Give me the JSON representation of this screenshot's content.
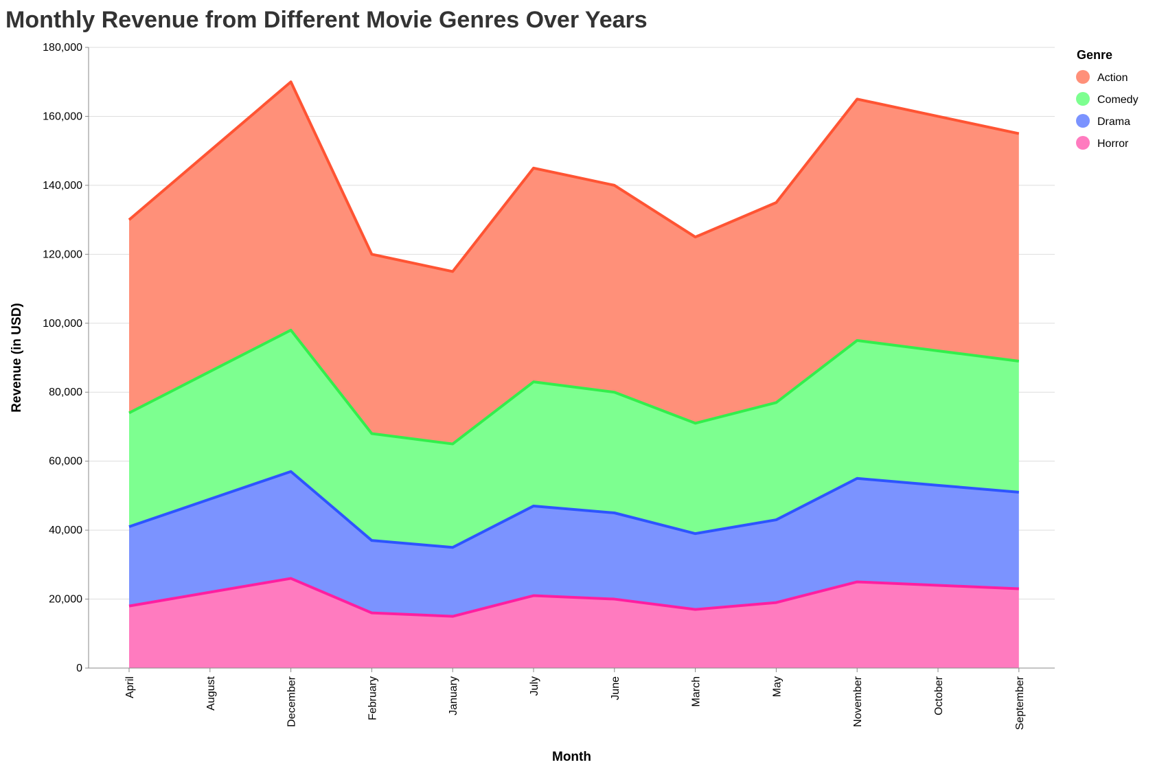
{
  "chart_data": {
    "type": "area",
    "title": "Monthly Revenue from Different Movie Genres Over Years",
    "xlabel": "Month",
    "ylabel": "Revenue (in USD)",
    "ylim": [
      0,
      180000
    ],
    "y_ticks": [
      0,
      20000,
      40000,
      60000,
      80000,
      100000,
      120000,
      140000,
      160000,
      180000
    ],
    "y_tick_labels": [
      "0",
      "20,000",
      "40,000",
      "60,000",
      "80,000",
      "100,000",
      "120,000",
      "140,000",
      "160,000",
      "180,000"
    ],
    "stacked": true,
    "grid": true,
    "legend_title": "Genre",
    "legend_position": "top-right",
    "categories": [
      "April",
      "August",
      "December",
      "February",
      "January",
      "July",
      "June",
      "March",
      "May",
      "November",
      "October",
      "September"
    ],
    "series": [
      {
        "name": "Horror",
        "fill": "#ff7bbf",
        "stroke": "#ff1fa0",
        "legend_color": "#ff7bbf",
        "values": [
          18000,
          22000,
          26000,
          16000,
          15000,
          21000,
          20000,
          17000,
          19000,
          25000,
          24000,
          23000
        ]
      },
      {
        "name": "Drama",
        "fill": "#7b93ff",
        "stroke": "#2d55ff",
        "legend_color": "#7b93ff",
        "values": [
          23000,
          27000,
          31000,
          21000,
          20000,
          26000,
          25000,
          22000,
          24000,
          30000,
          29000,
          28000
        ]
      },
      {
        "name": "Comedy",
        "fill": "#7dff90",
        "stroke": "#33ee4c",
        "legend_color": "#7dff90",
        "values": [
          33000,
          37000,
          41000,
          31000,
          30000,
          36000,
          35000,
          32000,
          34000,
          40000,
          39000,
          38000
        ]
      },
      {
        "name": "Action",
        "fill": "#ff9079",
        "stroke": "#ff5433",
        "legend_color": "#ff9079",
        "values": [
          56000,
          64000,
          72000,
          52000,
          50000,
          62000,
          60000,
          54000,
          58000,
          70000,
          68000,
          66000
        ]
      }
    ],
    "legend_order": [
      "Action",
      "Comedy",
      "Drama",
      "Horror"
    ]
  }
}
